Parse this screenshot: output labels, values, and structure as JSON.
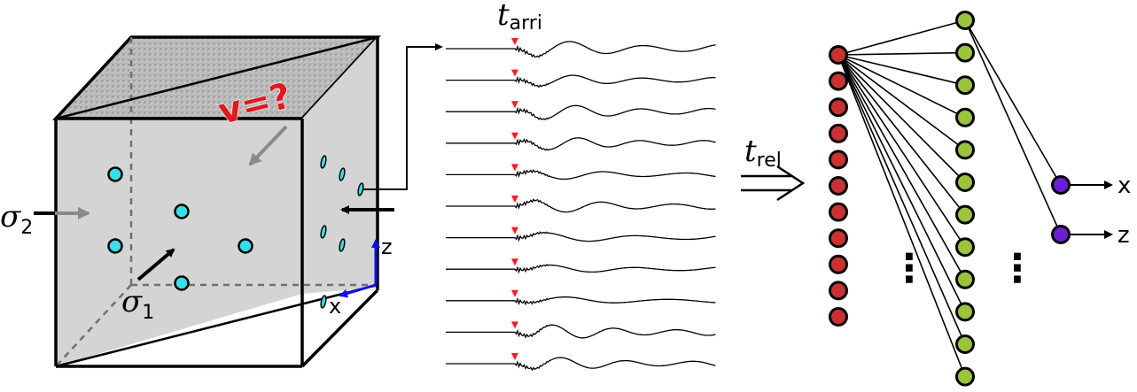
{
  "cube": {
    "velocity_label": "v=?",
    "sigma1_base": "σ",
    "sigma1_sub": "1",
    "sigma2_base": "σ",
    "sigma2_sub": "2",
    "axis_z": "z",
    "axis_x": "x"
  },
  "waveforms": {
    "arrival_base": "t",
    "arrival_sub": "arri",
    "trace_count": 11
  },
  "transform": {
    "relative_base": "t",
    "relative_sub": "rel"
  },
  "network": {
    "input_nodes": 11,
    "hidden_nodes": 12,
    "output_labels": [
      "x",
      "z"
    ],
    "ellipsis": "⋮"
  },
  "colors": {
    "input_node": "#c83232",
    "hidden_node": "#9dc23c",
    "output_node": "#6a1fd6",
    "sensor": "#35e0ea",
    "axis_blue": "#1010ee",
    "arrival_marker": "#ff1a1a",
    "velocity_text": "#e0191f",
    "face_gray": "#d4d4d4"
  }
}
